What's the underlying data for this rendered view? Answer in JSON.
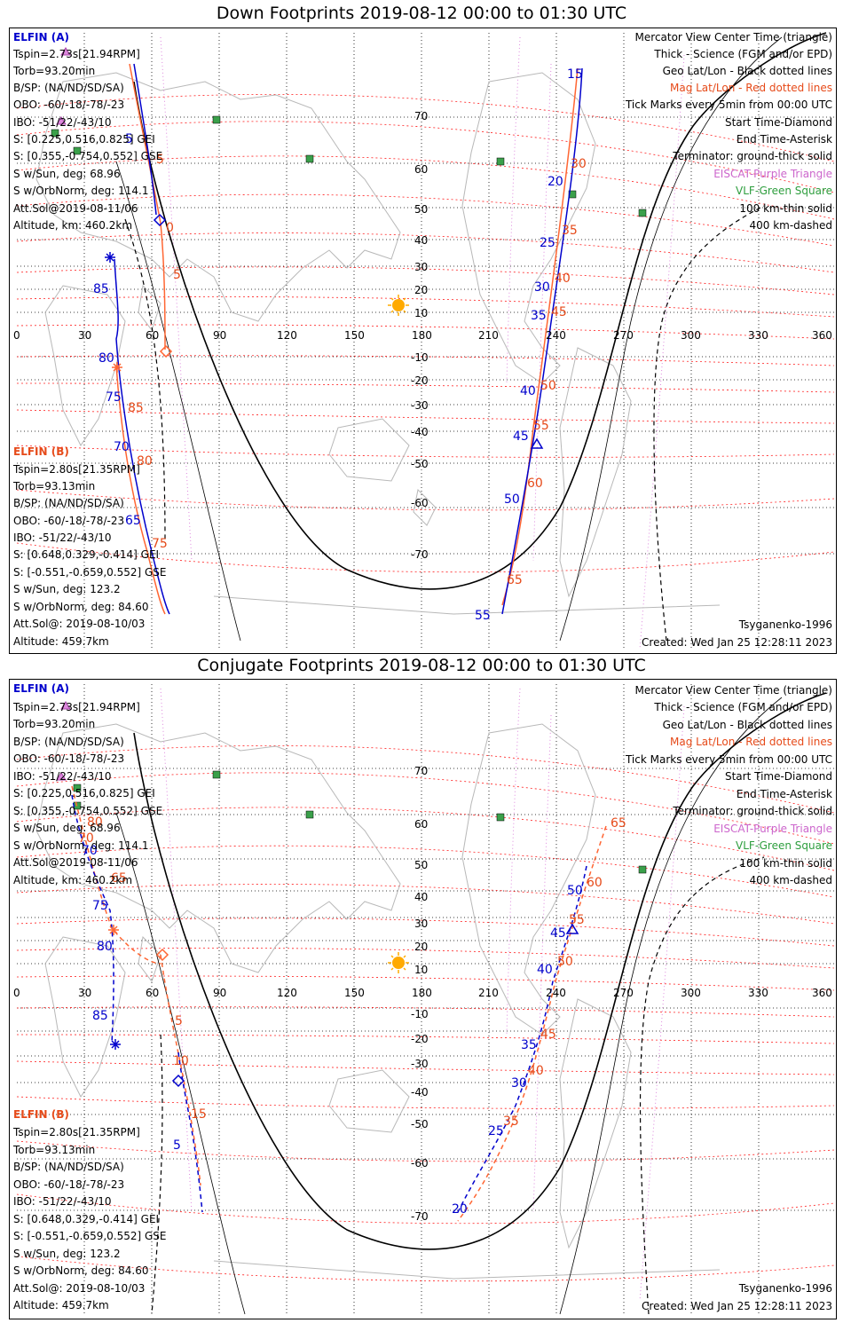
{
  "panels": [
    {
      "title": "Down Footprints 2019-08-12 00:00 to 01:30 UTC",
      "sun_icon": "sun-icon",
      "track_ticks_a": [
        "15",
        "20",
        "25",
        "30",
        "35",
        "40",
        "45",
        "50",
        "55",
        "85",
        "80",
        "75",
        "70",
        "65",
        "5",
        "0"
      ],
      "track_ticks_b": [
        "30",
        "35",
        "40",
        "45",
        "50",
        "55",
        "60",
        "65",
        "70",
        "75",
        "80",
        "85",
        "5",
        "0"
      ],
      "track_a_main": {
        "ticks": [
          "15",
          "20",
          "25",
          "30",
          "35",
          "40",
          "45",
          "50",
          "55"
        ]
      },
      "track_a_west": {
        "ticks": [
          "5",
          "0",
          "85",
          "80",
          "75",
          "70",
          "65"
        ]
      },
      "track_b_main": {
        "ticks": [
          "30",
          "35",
          "40",
          "45",
          "50",
          "55",
          "60",
          "65"
        ]
      },
      "track_b_west": {
        "ticks": [
          "5",
          "0",
          "5",
          "85",
          "80",
          "75"
        ]
      }
    },
    {
      "title": "Conjugate Footprints 2019-08-12 00:00 to 01:30 UTC",
      "track_a_main": {
        "ticks": [
          "20",
          "25",
          "30",
          "35",
          "40",
          "45",
          "50"
        ]
      },
      "track_a_west": {
        "ticks": [
          "80",
          "75",
          "70",
          "85",
          "5"
        ]
      },
      "track_b_main": {
        "ticks": [
          "65",
          "60",
          "55",
          "50",
          "45",
          "40",
          "35"
        ]
      },
      "track_b_west": {
        "ticks": [
          "80",
          "75",
          "70",
          "65",
          "5",
          "10",
          "15"
        ]
      }
    }
  ],
  "left_a": {
    "header": "ELFIN (A)",
    "lines": [
      "Tspin=2.73s[21.94RPM]",
      "Torb=93.20min",
      "B/SP: (NA/ND/SD/SA)",
      "OBO: -60/-18/-78/-23",
      "IBO: -51/22/-43/10",
      "S: [0.225,0.516,0.825] GEI",
      "S: [0.355,-0.754,0.552] GSE",
      "S w/Sun, deg: 68.96",
      "S w/OrbNorm, deg: 114.1",
      "Att.Sol@2019-08-11/06",
      "Altitude, km: 460.2km"
    ]
  },
  "left_b": {
    "header": "ELFIN (B)",
    "lines": [
      "Tspin=2.80s[21.35RPM]",
      "Torb=93.13min",
      "B/SP: (NA/ND/SD/SA)",
      "OBO: -60/-18/-78/-23",
      "IBO: -51/22/-43/10",
      "S: [0.648,0.329,-0.414] GEI",
      "S: [-0.551,-0.659,0.552] GSE",
      "S w/Sun, deg: 123.2",
      "S w/OrbNorm, deg: 84.60",
      "Att.Sol@: 2019-08-10/03",
      "Altitude: 459.7km"
    ]
  },
  "right_legend": [
    {
      "text": "Mercator View Center Time (triangle)",
      "color": "black"
    },
    {
      "text": "Thick - Science (FGM and/or EPD)",
      "color": "black"
    },
    {
      "text": "Geo Lat/Lon - Black dotted lines",
      "color": "black"
    },
    {
      "text": "Mag Lat/Lon - Red dotted lines",
      "color": "red"
    },
    {
      "text": "Tick Marks every 5min from 00:00 UTC",
      "color": "black"
    },
    {
      "text": "Start Time-Diamond",
      "color": "black"
    },
    {
      "text": "End Time-Asterisk",
      "color": "black"
    },
    {
      "text": "Terminator: ground-thick solid",
      "color": "black"
    },
    {
      "text": "EISCAT-Purple Triangle",
      "color": "purple"
    },
    {
      "text": "VLF-Green Square",
      "color": "green"
    },
    {
      "text": "100 km-thin solid",
      "color": "black"
    },
    {
      "text": "400 km-dashed",
      "color": "black"
    }
  ],
  "model": "Tsyganenko-1996",
  "created": "Created: Wed Jan 25 12:28:11 2023",
  "lon_labels": [
    "0",
    "30",
    "60",
    "90",
    "120",
    "150",
    "180",
    "210",
    "240",
    "270",
    "300",
    "330",
    "360"
  ],
  "lat_labels": [
    "70",
    "60",
    "50",
    "40",
    "30",
    "20",
    "10",
    "-10",
    "-20",
    "-30",
    "-40",
    "-50",
    "-60",
    "-70"
  ],
  "colors": {
    "blue": "#0000cc",
    "red": "#e64a19",
    "grid": "#000000",
    "mag": "#ff0000",
    "geo_land": "#b0b0b0",
    "purple": "#cc66cc",
    "green": "#2e9e3e"
  }
}
